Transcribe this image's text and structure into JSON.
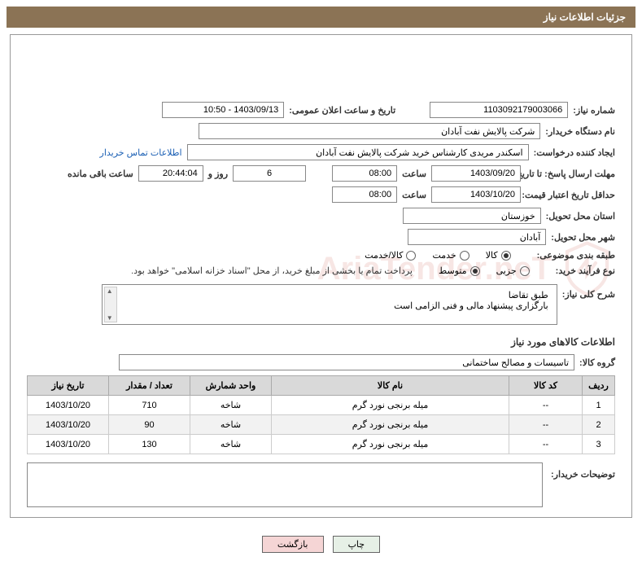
{
  "header_title": "جزئیات اطلاعات نیاز",
  "labels": {
    "need_number": "شماره نیاز:",
    "announce_datetime": "تاریخ و ساعت اعلان عمومی:",
    "buyer_org": "نام دستگاه خریدار:",
    "requester": "ایجاد کننده درخواست:",
    "contact_link": "اطلاعات تماس خریدار",
    "response_deadline": "مهلت ارسال پاسخ: تا تاریخ:",
    "time": "ساعت",
    "days_and": "روز و",
    "remaining": "ساعت باقی مانده",
    "quote_validity": "حداقل تاریخ اعتبار قیمت: تا تاریخ:",
    "delivery_province": "استان محل تحویل:",
    "delivery_city": "شهر محل تحویل:",
    "category": "طبقه بندی موضوعی:",
    "purchase_type": "نوع فرآیند خرید:",
    "purchase_note": "پرداخت تمام یا بخشی از مبلغ خرید، از محل \"اسناد خزانه اسلامی\" خواهد بود.",
    "general_desc": "شرح کلی نیاز:",
    "items_section": "اطلاعات کالاهای مورد نیاز",
    "item_group": "گروه کالا:",
    "buyer_notes": "توضیحات خریدار:"
  },
  "values": {
    "need_number": "1103092179003066",
    "announce_datetime": "1403/09/13 - 10:50",
    "buyer_org": "شرکت پالایش نفت آبادان",
    "requester": "اسکندر مریدی کارشناس خرید شرکت پالایش نفت آبادان",
    "response_date": "1403/09/20",
    "response_time": "08:00",
    "days_remaining": "6",
    "time_remaining": "20:44:04",
    "quote_date": "1403/10/20",
    "quote_time": "08:00",
    "province": "خوزستان",
    "city": "آبادان",
    "desc_line1": "طبق تقاضا",
    "desc_line2": "بارگزاری پیشنهاد مالی و فنی الزامی است",
    "item_group": "تاسیسات و مصالح ساختمانی"
  },
  "radios": {
    "category": [
      {
        "label": "کالا",
        "checked": true
      },
      {
        "label": "خدمت",
        "checked": false
      },
      {
        "label": "کالا/خدمت",
        "checked": false
      }
    ],
    "purchase": [
      {
        "label": "جزیی",
        "checked": false
      },
      {
        "label": "متوسط",
        "checked": true
      }
    ]
  },
  "table": {
    "headers": [
      "ردیف",
      "کد کالا",
      "نام کالا",
      "واحد شمارش",
      "تعداد / مقدار",
      "تاریخ نیاز"
    ],
    "rows": [
      [
        "1",
        "--",
        "میله برنجی نورد گرم",
        "شاخه",
        "710",
        "1403/10/20"
      ],
      [
        "2",
        "--",
        "میله برنجی نورد گرم",
        "شاخه",
        "90",
        "1403/10/20"
      ],
      [
        "3",
        "--",
        "میله برنجی نورد گرم",
        "شاخه",
        "130",
        "1403/10/20"
      ]
    ]
  },
  "buttons": {
    "print": "چاپ",
    "back": "بازگشت"
  },
  "watermark_text": "AriaTender.neT",
  "colors": {
    "header_bg": "#8b7355",
    "link": "#1a5fb4",
    "th_bg": "#d9d9d9",
    "alt_row": "#f2f2f2",
    "watermark": "#c0392b"
  }
}
